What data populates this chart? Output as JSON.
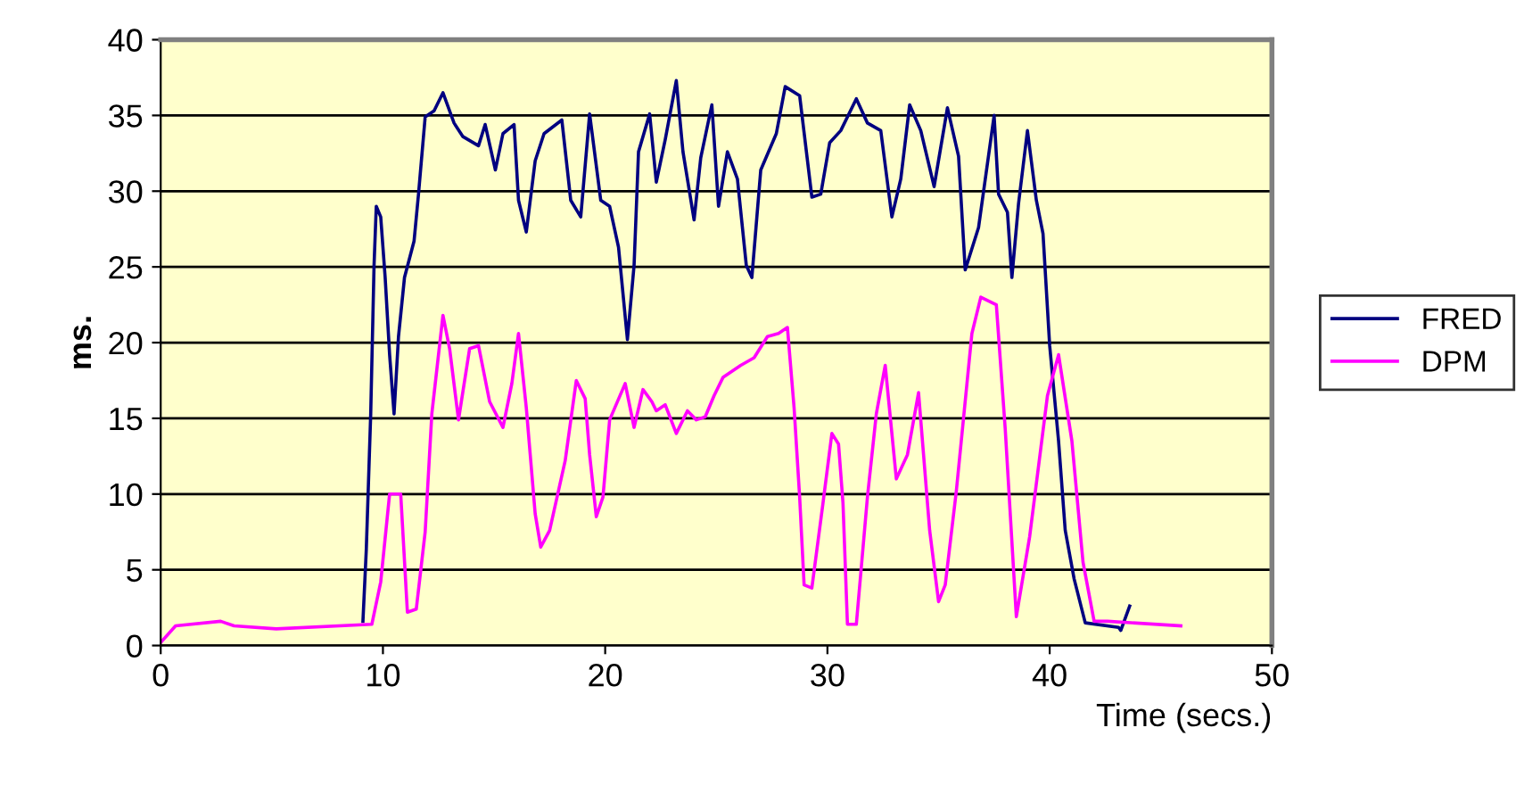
{
  "chart_data": {
    "type": "line",
    "xlabel": "Time (secs.)",
    "ylabel": "ms.",
    "xlim": [
      0,
      50
    ],
    "xticks": [
      0,
      10,
      20,
      30,
      40,
      50
    ],
    "ylim": [
      0,
      40
    ],
    "yticks": [
      0,
      5,
      10,
      15,
      20,
      25,
      30,
      35,
      40
    ],
    "grid": "y",
    "legend": "right",
    "marker": "none",
    "line_style": "solid",
    "series": [
      {
        "name": "FRED",
        "color": "#000080",
        "x": [
          9.1,
          9.25,
          9.45,
          9.6,
          9.7,
          9.9,
          10.1,
          10.3,
          10.5,
          10.7,
          10.97,
          11.4,
          11.6,
          11.9,
          12.3,
          12.7,
          13.2,
          13.6,
          14.3,
          14.6,
          15.06,
          15.4,
          15.9,
          16.1,
          16.45,
          16.85,
          17.25,
          18.05,
          18.45,
          18.9,
          19.3,
          19.8,
          20.2,
          20.6,
          21.0,
          21.3,
          21.5,
          22.0,
          22.3,
          22.7,
          23.2,
          23.5,
          24.0,
          24.3,
          24.8,
          25.1,
          25.5,
          25.95,
          26.35,
          26.6,
          27.0,
          27.7,
          28.1,
          28.75,
          29.3,
          29.7,
          30.1,
          30.6,
          31.3,
          31.8,
          32.4,
          32.9,
          33.3,
          33.7,
          34.2,
          34.8,
          35.4,
          35.9,
          36.2,
          36.8,
          37.5,
          37.7,
          38.1,
          38.3,
          38.6,
          39.0,
          39.4,
          39.7,
          40.0,
          40.4,
          40.7,
          41.1,
          41.6,
          43.1,
          43.2,
          43.6
        ],
        "values": [
          1.6,
          6.3,
          15.3,
          25.1,
          29,
          28.3,
          24.3,
          19.2,
          15.3,
          20.4,
          24.3,
          26.7,
          29.8,
          34.9,
          35.3,
          36.5,
          34.5,
          33.6,
          33,
          34.4,
          31.4,
          33.8,
          34.4,
          29.4,
          27.3,
          32,
          33.8,
          34.7,
          29.4,
          28.3,
          35.1,
          29.4,
          29,
          26.3,
          20.2,
          25.1,
          32.6,
          35.1,
          30.6,
          33.4,
          37.3,
          32.6,
          28.1,
          32.2,
          35.7,
          29,
          32.6,
          30.8,
          25.1,
          24.3,
          31.4,
          33.8,
          36.9,
          36.3,
          29.6,
          29.8,
          33.2,
          34,
          36.1,
          34.5,
          34,
          28.3,
          30.8,
          35.7,
          34,
          30.3,
          35.5,
          32.3,
          24.8,
          27.6,
          35,
          29.8,
          28.6,
          24.3,
          29.2,
          34,
          29.4,
          27.2,
          19.8,
          13.5,
          7.6,
          4.4,
          1.5,
          1.2,
          1.0,
          2.6
        ]
      },
      {
        "name": "DPM",
        "color": "#ff00ff",
        "x": [
          0,
          0.67,
          2.7,
          3.3,
          5.2,
          9.5,
          9.9,
          10.3,
          10.8,
          11.1,
          11.5,
          11.9,
          12.2,
          12.7,
          13.0,
          13.4,
          13.9,
          14.3,
          14.8,
          15.4,
          15.8,
          16.1,
          16.45,
          16.85,
          17.1,
          17.5,
          18.2,
          18.7,
          19.1,
          19.3,
          19.6,
          19.9,
          20.2,
          20.9,
          21.3,
          21.7,
          22.1,
          22.3,
          22.7,
          23.2,
          23.7,
          24.1,
          24.5,
          24.9,
          25.3,
          26.1,
          26.7,
          27.3,
          27.8,
          28.2,
          28.5,
          28.75,
          28.95,
          29.3,
          29.8,
          30.2,
          30.5,
          30.7,
          30.9,
          31.3,
          31.8,
          32.2,
          32.6,
          33.1,
          33.6,
          34.1,
          34.6,
          35.0,
          35.3,
          35.8,
          36.5,
          36.9,
          37.6,
          38.0,
          38.5,
          39.1,
          39.9,
          40.4,
          41.0,
          41.5,
          42.0,
          42.6,
          45.9
        ],
        "values": [
          0.2,
          1.3,
          1.6,
          1.3,
          1.1,
          1.4,
          4.2,
          10,
          10,
          2.2,
          2.4,
          7.5,
          15.3,
          21.8,
          19.6,
          14.9,
          19.6,
          19.8,
          16.1,
          14.4,
          17.3,
          20.6,
          15.7,
          8.7,
          6.5,
          7.6,
          12.2,
          17.5,
          16.3,
          12.6,
          8.5,
          9.8,
          14.9,
          17.3,
          14.4,
          16.9,
          16.1,
          15.5,
          15.9,
          14,
          15.5,
          14.9,
          15.1,
          16.5,
          17.7,
          18.5,
          19,
          20.4,
          20.6,
          21,
          15.7,
          9.8,
          4,
          3.8,
          9.4,
          14,
          13.3,
          9.4,
          1.4,
          1.4,
          9.8,
          15.3,
          18.5,
          11,
          12.6,
          16.7,
          7.6,
          2.9,
          4,
          10.2,
          20.6,
          23,
          22.5,
          14.3,
          1.9,
          7.2,
          16.5,
          19.2,
          13.5,
          5.5,
          1.6,
          1.6,
          1.3
        ]
      }
    ]
  }
}
